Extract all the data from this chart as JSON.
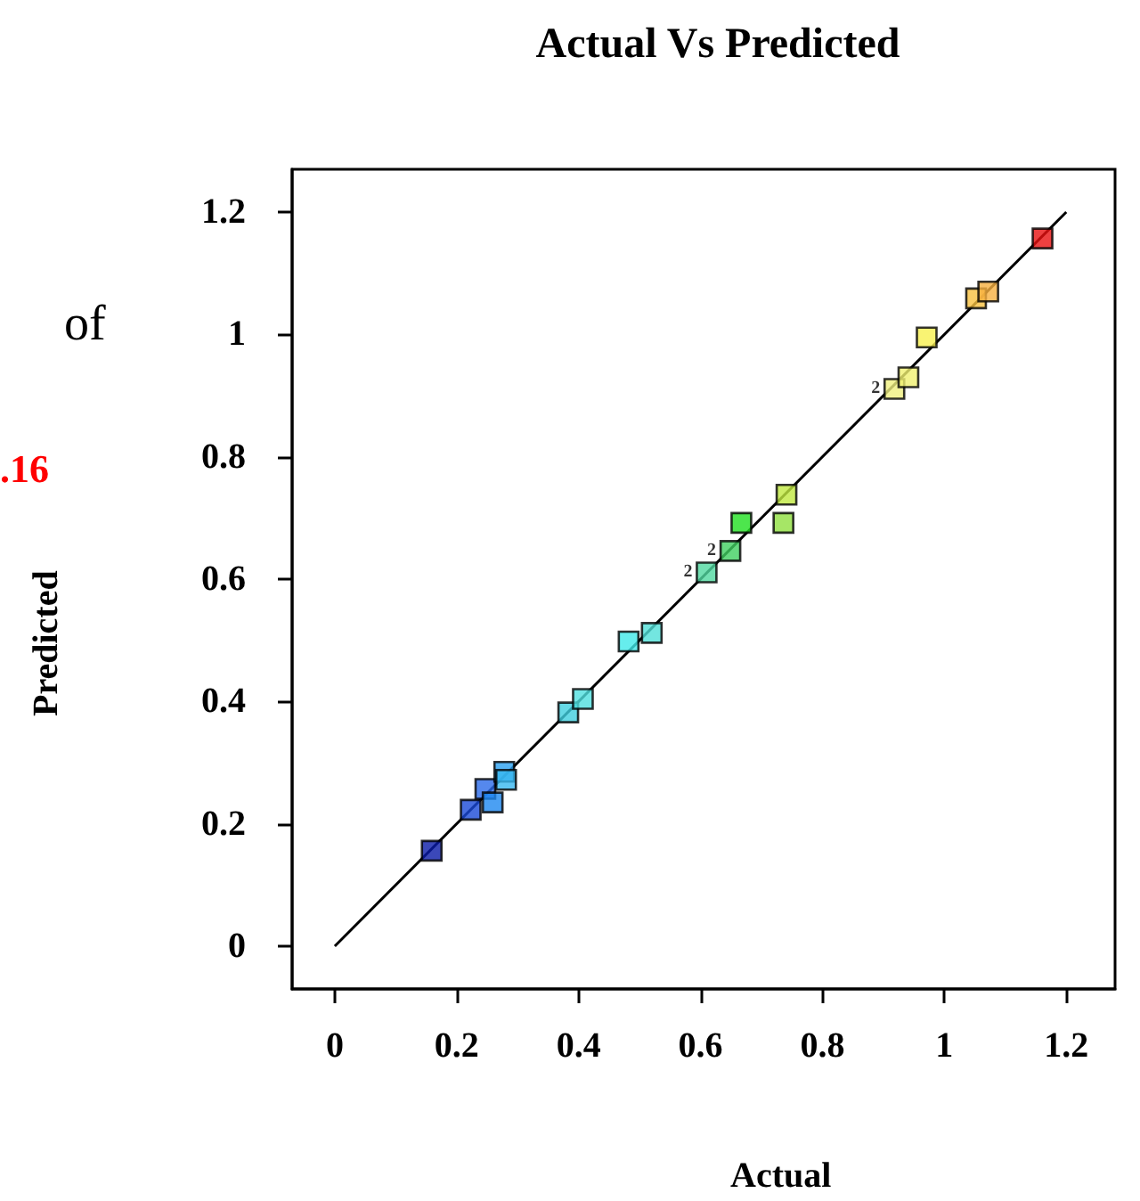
{
  "chart_data": {
    "type": "scatter",
    "title": "Actual Vs Predicted",
    "xlabel": "Actual",
    "ylabel": "Predicted",
    "annotations": [
      {
        "text": "2",
        "x": 0.61,
        "y": 0.611
      },
      {
        "text": "2",
        "x": 0.649,
        "y": 0.646
      },
      {
        "text": "2",
        "x": 0.918,
        "y": 0.911
      },
      "of",
      ".16"
    ],
    "xlim": [
      -0.07,
      1.28
    ],
    "ylim": [
      -0.07,
      1.27
    ],
    "xticks": [
      0,
      0.2,
      0.4,
      0.6,
      0.8,
      1,
      1.2
    ],
    "yticks": [
      0,
      0.2,
      0.4,
      0.6,
      0.8,
      1,
      1.2
    ],
    "grid": false,
    "marker": "square",
    "series": [
      {
        "x": [
          0.159,
          0.223,
          0.247,
          0.259,
          0.278,
          0.281,
          0.383,
          0.407,
          0.482,
          0.52,
          0.61,
          0.649,
          0.667,
          0.736,
          0.741,
          0.918,
          0.941,
          0.971,
          1.052,
          1.072,
          1.161
        ],
        "values": [
          0.156,
          0.223,
          0.257,
          0.235,
          0.285,
          0.272,
          0.382,
          0.404,
          0.498,
          0.512,
          0.611,
          0.646,
          0.692,
          0.692,
          0.738,
          0.911,
          0.93,
          0.995,
          1.059,
          1.07,
          1.157
        ],
        "colors": [
          "#0a1aa8",
          "#1a4ad8",
          "#2a6ae8",
          "#1e88f0",
          "#2aa0f0",
          "#38b8f0",
          "#40d0e0",
          "#50e0e0",
          "#40e8e8",
          "#50e0d8",
          "#50d8a0",
          "#40d060",
          "#20e020",
          "#90e040",
          "#c0e840",
          "#f0f080",
          "#f0f070",
          "#f8f050",
          "#f8c040",
          "#f8b040",
          "#e81010"
        ]
      },
      {
        "type": "line",
        "marker": "none",
        "color": "#000000",
        "x": [
          0,
          1.2
        ],
        "values": [
          0,
          1.2
        ]
      }
    ]
  }
}
